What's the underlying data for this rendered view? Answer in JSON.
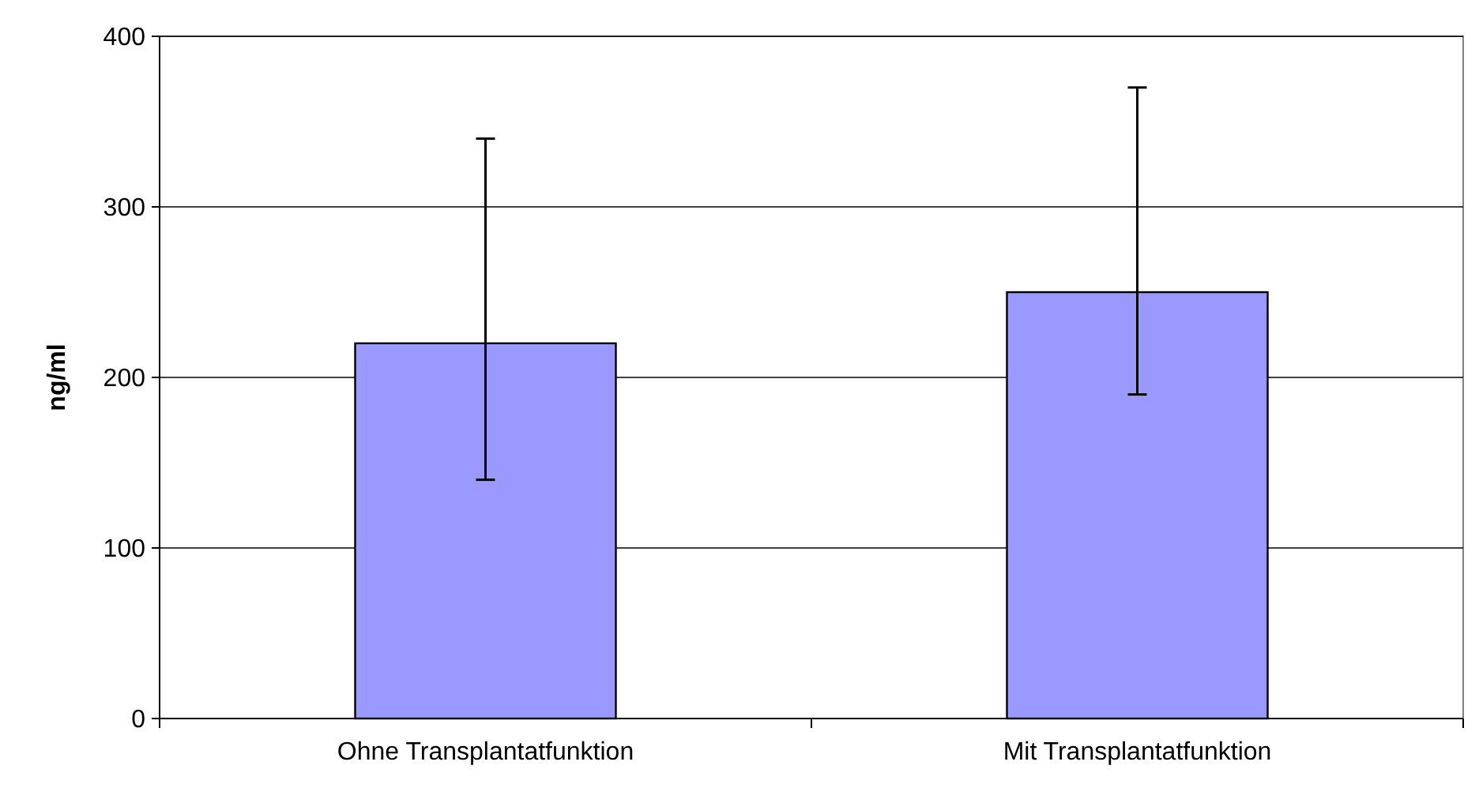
{
  "chart_data": {
    "type": "bar",
    "ylabel": "ng/ml",
    "categories": [
      "Ohne Transplantatfunktion",
      "Mit Transplantatfunktion"
    ],
    "values": [
      220,
      250
    ],
    "color": "#9999ff",
    "errors": [
      [
        140,
        340
      ],
      [
        190,
        370
      ]
    ],
    "ylim": [
      0,
      400
    ],
    "yticks": [
      0,
      100,
      200,
      300,
      400
    ],
    "grid": "y"
  }
}
